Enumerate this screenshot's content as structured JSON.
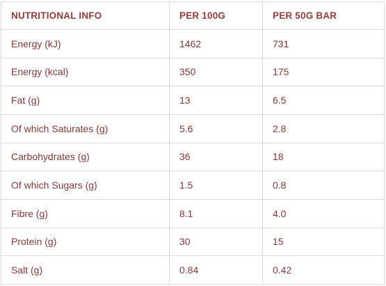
{
  "table": {
    "headers": [
      "NUTRITIONAL INFO",
      "PER 100G",
      "PER 50G BAR"
    ],
    "rows": [
      [
        "Energy (kJ)",
        "1462",
        "731"
      ],
      [
        "Energy (kcal)",
        "350",
        "175"
      ],
      [
        "Fat (g)",
        "13",
        "6.5"
      ],
      [
        "Of which Saturates (g)",
        "5.6",
        "2.8"
      ],
      [
        "Carbohydrates (g)",
        "36",
        "18"
      ],
      [
        "Of which Sugars (g)",
        "1.5",
        "0.8"
      ],
      [
        "Fibre (g)",
        "8.1",
        "4.0"
      ],
      [
        "Protein (g)",
        "30",
        "15"
      ],
      [
        "Salt (g)",
        "0.84",
        "0.42"
      ]
    ]
  },
  "colors": {
    "text": "#7a3b3b",
    "header_text": "#8b3e3e",
    "border": "#d9d9d9",
    "background": "#ffffff"
  }
}
